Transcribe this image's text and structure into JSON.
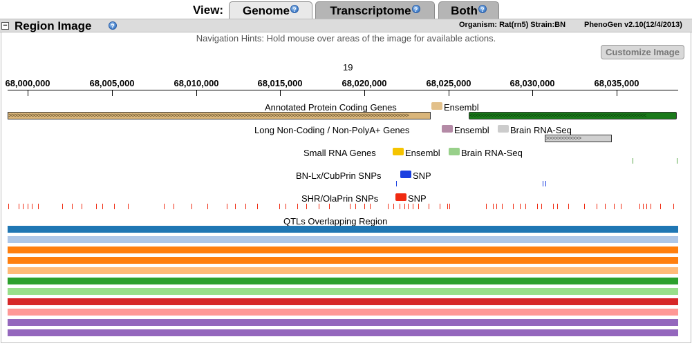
{
  "view_tabs": {
    "label": "View:",
    "tabs": [
      {
        "label": "Genome",
        "active": true
      },
      {
        "label": "Transcriptome",
        "active": false
      },
      {
        "label": "Both",
        "active": false
      }
    ]
  },
  "header": {
    "title": "Region Image",
    "organism": "Organism: Rat(rn5) Strain:BN",
    "version": "PhenoGen v2.10(12/4/2013)"
  },
  "nav_hint": "Navigation Hints: Hold mouse over areas of the image for available actions.",
  "customize_button": "Customize Image",
  "ruler": {
    "chromosome": "19",
    "coordinates": [
      "68,000,000",
      "68,005,000",
      "68,010,000",
      "68,015,000",
      "68,020,000",
      "68,025,000",
      "68,030,000",
      "68,035,000"
    ]
  },
  "tracks": {
    "protein_coding": {
      "title": "Annotated Protein Coding Genes",
      "legend": [
        {
          "label": "Ensembl",
          "color": "#e2c08a"
        }
      ]
    },
    "lnc": {
      "title": "Long Non-Coding / Non-PolyA+ Genes",
      "legend": [
        {
          "label": "Ensembl",
          "color": "#b48aa6"
        },
        {
          "label": "Brain RNA-Seq",
          "color": "#cccccc"
        }
      ]
    },
    "small_rna": {
      "title": "Small RNA Genes",
      "legend": [
        {
          "label": "Ensembl",
          "color": "#f5c400"
        },
        {
          "label": "Brain RNA-Seq",
          "color": "#98d08a"
        }
      ]
    },
    "bn_snps": {
      "title": "BN-Lx/CubPrin SNPs",
      "legend": [
        {
          "label": "SNP",
          "color": "#1a3fe0"
        }
      ]
    },
    "shr_snps": {
      "title": "SHR/OlaPrin SNPs",
      "legend": [
        {
          "label": "SNP",
          "color": "#f02a10"
        }
      ]
    },
    "qtls": {
      "title": "QTLs Overlapping Region",
      "colors": [
        "#1f77b4",
        "#aec7e8",
        "#ff7f0e",
        "#ff7f0e",
        "#ffbb78",
        "#2ca02c",
        "#98df8a",
        "#d62728",
        "#ff9896",
        "#9467bd",
        "#9467bd"
      ]
    }
  }
}
